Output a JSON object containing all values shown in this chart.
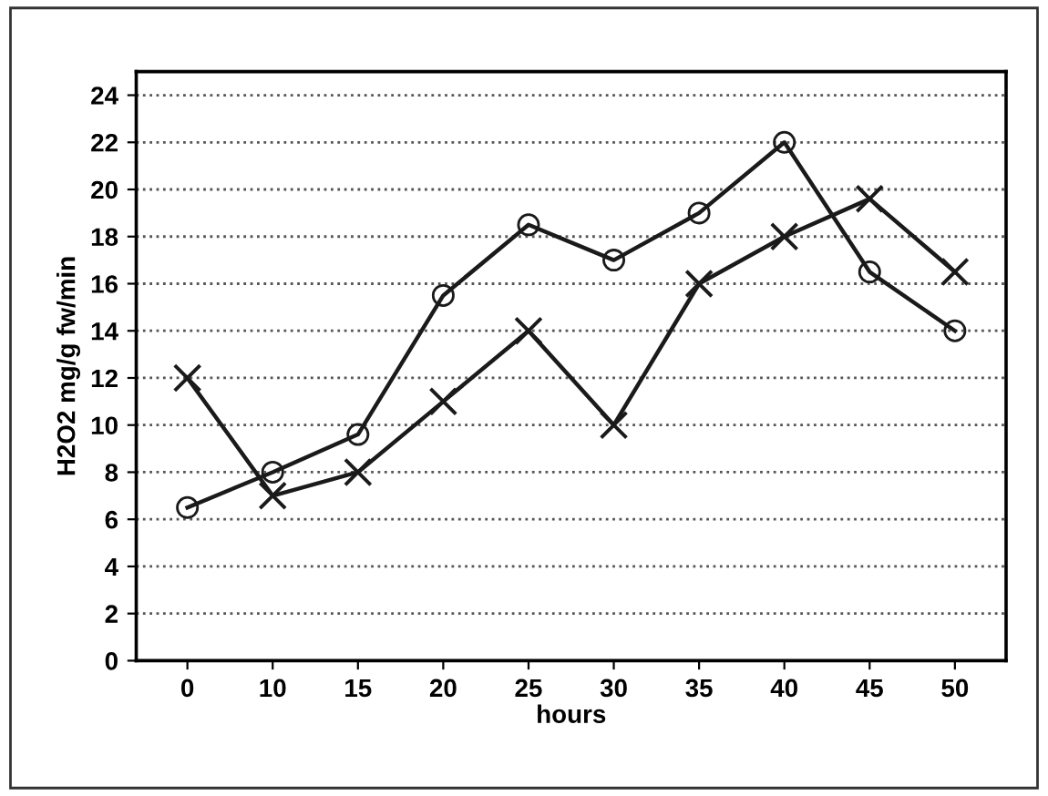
{
  "chart_data": {
    "type": "line",
    "xlabel": "hours",
    "ylabel": "H2O2 mg/g fw/min",
    "categories": [
      "0",
      "10",
      "15",
      "20",
      "25",
      "30",
      "35",
      "40",
      "45",
      "50"
    ],
    "series": [
      {
        "color": "#1a1a1a",
        "marker": "circle",
        "values": [
          6.5,
          8,
          9.6,
          15.5,
          18.5,
          17,
          19,
          22,
          16.5,
          14
        ]
      },
      {
        "color": "#1a1a1a",
        "marker": "cross",
        "values": [
          12,
          7,
          8,
          11,
          14,
          10,
          16,
          18,
          19.6,
          16.5
        ]
      }
    ],
    "ylim": [
      0,
      25
    ],
    "yticks": [
      0,
      2,
      4,
      6,
      8,
      10,
      12,
      14,
      16,
      18,
      20,
      22,
      24
    ],
    "grid": "y",
    "line_style": "solid"
  }
}
